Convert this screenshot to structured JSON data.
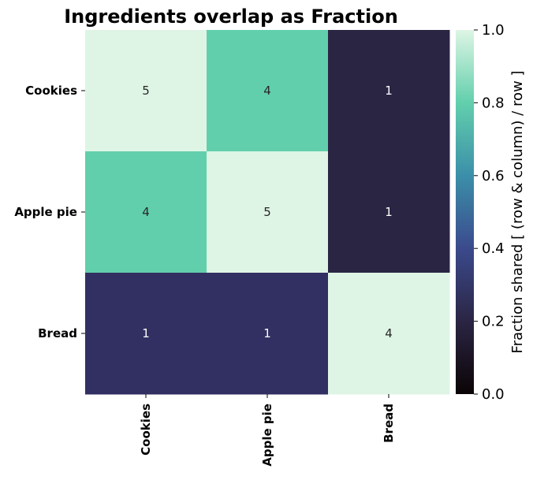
{
  "chart_data": {
    "type": "heatmap",
    "title": "Ingredients overlap as Fraction",
    "rows": [
      "Cookies",
      "Apple pie",
      "Bread"
    ],
    "columns": [
      "Cookies",
      "Apple pie",
      "Bread"
    ],
    "annotations": [
      [
        5,
        4,
        1
      ],
      [
        4,
        5,
        1
      ],
      [
        1,
        1,
        4
      ]
    ],
    "values": [
      [
        1.0,
        0.8,
        0.2
      ],
      [
        0.8,
        1.0,
        0.2
      ],
      [
        0.25,
        0.25,
        1.0
      ]
    ],
    "colorbar": {
      "label": "Fraction shared [ (row & column) / row ]",
      "range": [
        0.0,
        1.0
      ],
      "ticks": [
        "0.0",
        "0.2",
        "0.4",
        "0.6",
        "0.8",
        "1.0"
      ],
      "colormap": "mako",
      "colors": {
        "0.0": "#0b0405",
        "0.2": "#2b2544",
        "0.25": "#322f62",
        "0.4": "#3b4a8c",
        "0.6": "#3b8fa9",
        "0.8": "#62cfac",
        "1.0": "#def5e5"
      }
    },
    "grid": false
  }
}
